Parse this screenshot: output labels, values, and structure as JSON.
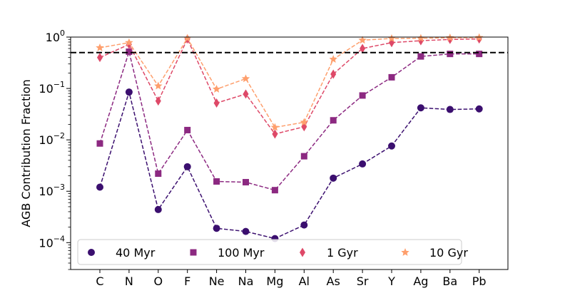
{
  "chart_data": {
    "type": "line",
    "ylabel": "AGB Contribution Fraction",
    "xlabel": "",
    "yscale": "log",
    "ylim": [
      3e-05,
      1.0
    ],
    "categories": [
      "C",
      "N",
      "O",
      "F",
      "Ne",
      "Na",
      "Mg",
      "Al",
      "As",
      "Sr",
      "Y",
      "Ag",
      "Ba",
      "Pb"
    ],
    "yticks": [
      {
        "value": 0.0001,
        "base": "10",
        "exp": "−4"
      },
      {
        "value": 0.001,
        "base": "10",
        "exp": "−3"
      },
      {
        "value": 0.01,
        "base": "10",
        "exp": "−2"
      },
      {
        "value": 0.1,
        "base": "10",
        "exp": "−1"
      },
      {
        "value": 1.0,
        "base": "10",
        "exp": "0"
      }
    ],
    "reference_line": {
      "value": 0.5,
      "style": "dashed",
      "color": "#000000"
    },
    "legend_position": "lower-center",
    "series": [
      {
        "name": "40 Myr",
        "color": "#3b0f6f",
        "marker": "circle",
        "values": [
          0.0012,
          0.085,
          0.00044,
          0.003,
          0.00019,
          0.000165,
          0.00012,
          0.00022,
          0.0018,
          0.0034,
          0.0076,
          0.042,
          0.039,
          0.04
        ]
      },
      {
        "name": "100 Myr",
        "color": "#8c2981",
        "marker": "square",
        "values": [
          0.0085,
          0.52,
          0.0022,
          0.0155,
          0.00155,
          0.0015,
          0.00105,
          0.0048,
          0.024,
          0.073,
          0.165,
          0.42,
          0.47,
          0.47
        ]
      },
      {
        "name": "1 Gyr",
        "color": "#de4968",
        "marker": "diamond",
        "values": [
          0.4,
          0.72,
          0.057,
          0.92,
          0.052,
          0.078,
          0.013,
          0.018,
          0.19,
          0.6,
          0.78,
          0.85,
          0.9,
          0.92
        ]
      },
      {
        "name": "10 Gyr",
        "color": "#fe9f6d",
        "marker": "star",
        "values": [
          0.62,
          0.78,
          0.112,
          0.95,
          0.097,
          0.155,
          0.0175,
          0.022,
          0.37,
          0.87,
          0.94,
          0.95,
          0.97,
          0.98
        ]
      }
    ]
  }
}
